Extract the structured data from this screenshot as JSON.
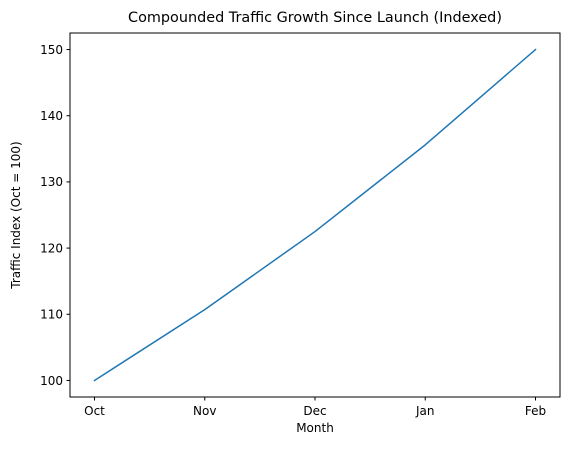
{
  "chart_data": {
    "type": "line",
    "title": "Compounded Traffic Growth Since Launch (Indexed)",
    "xlabel": "Month",
    "ylabel": "Traffic Index (Oct = 100)",
    "categories": [
      "Oct",
      "Nov",
      "Dec",
      "Jan",
      "Feb"
    ],
    "series": [
      {
        "values": [
          100,
          110.7,
          122.5,
          135.6,
          150
        ],
        "color": "#1f77b4"
      }
    ],
    "yticks": [
      100,
      110,
      120,
      130,
      140,
      150
    ],
    "ylim": [
      97.5,
      152.5
    ],
    "grid": false,
    "legend": "none"
  }
}
